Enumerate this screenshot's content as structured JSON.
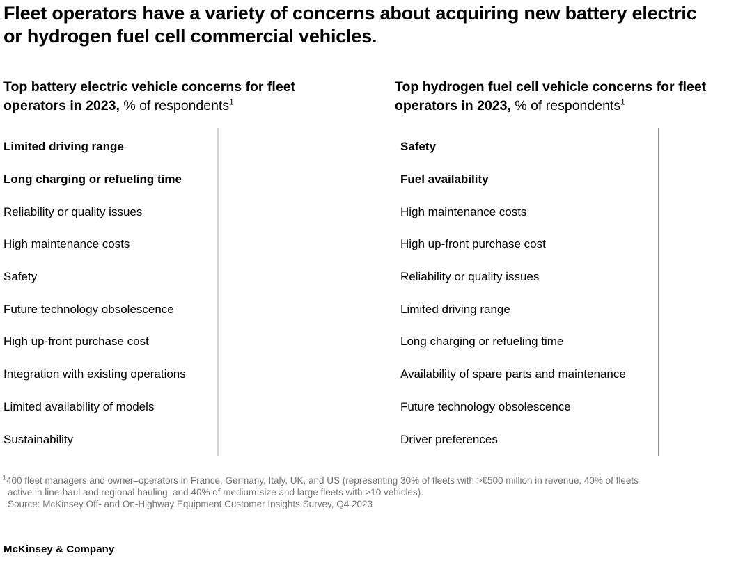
{
  "title": "Fleet operators have a variety of concerns about acquiring new battery electric or hydrogen fuel cell commercial vehicles.",
  "charts": [
    {
      "heading_bold": "Top battery electric vehicle concerns for fleet operators in 2023,",
      "heading_unit": " % of respondents",
      "heading_sup": "1",
      "items": [
        {
          "label": "Limited driving range"
        },
        {
          "label": "Long charging or refueling time"
        },
        {
          "label": "Reliability or quality issues"
        },
        {
          "label": "High maintenance costs"
        },
        {
          "label": "Safety"
        },
        {
          "label": "Future technology obsolescence"
        },
        {
          "label": "High up-front purchase cost"
        },
        {
          "label": "Integration with existing operations"
        },
        {
          "label": "Limited availability of models"
        },
        {
          "label": "Sustainability"
        }
      ]
    },
    {
      "heading_bold": "Top hydrogen fuel cell vehicle concerns for fleet operators in 2023,",
      "heading_unit": " % of respondents",
      "heading_sup": "1",
      "items": [
        {
          "label": "Safety"
        },
        {
          "label": "Fuel availability"
        },
        {
          "label": "High maintenance costs"
        },
        {
          "label": "High up-front purchase cost"
        },
        {
          "label": "Reliability or quality issues"
        },
        {
          "label": "Limited driving range"
        },
        {
          "label": "Long charging or refueling time"
        },
        {
          "label": "Availability of spare parts and maintenance"
        },
        {
          "label": "Future technology obsolescence"
        },
        {
          "label": "Driver preferences"
        }
      ]
    }
  ],
  "chart_data": [
    {
      "type": "bar",
      "orientation": "horizontal",
      "title": "Top battery electric vehicle concerns for fleet operators in 2023",
      "unit": "% of respondents",
      "categories": [
        "Limited driving range",
        "Long charging or refueling time",
        "Reliability or quality issues",
        "High maintenance costs",
        "Safety",
        "Future technology obsolescence",
        "High up-front purchase cost",
        "Integration with existing operations",
        "Limited availability of models",
        "Sustainability"
      ],
      "emphasized_categories": [
        "Limited driving range",
        "Long charging or refueling time"
      ],
      "values": null,
      "legend_position": "none",
      "grid": false
    },
    {
      "type": "bar",
      "orientation": "horizontal",
      "title": "Top hydrogen fuel cell vehicle concerns for fleet operators in 2023",
      "unit": "% of respondents",
      "categories": [
        "Safety",
        "Fuel availability",
        "High maintenance costs",
        "High up-front purchase cost",
        "Reliability or quality issues",
        "Limited driving range",
        "Long charging or refueling time",
        "Availability of spare parts and maintenance",
        "Future technology obsolescence",
        "Driver preferences"
      ],
      "emphasized_categories": [
        "Safety",
        "Fuel availability"
      ],
      "values": null,
      "legend_position": "none",
      "grid": false
    }
  ],
  "footnote": {
    "sup": "1",
    "line1": "400 fleet managers and owner–operators in France, Germany, Italy, UK, and US (representing 30% of fleets with >€500 million in revenue, 40% of fleets",
    "line2": "active in line-haul and regional hauling, and 40% of medium-size and large fleets with >10 vehicles).",
    "source": "Source: McKinsey Off- and On-Highway Equipment Customer Insights Survey, Q4 2023"
  },
  "logo": "McKinsey & Company"
}
